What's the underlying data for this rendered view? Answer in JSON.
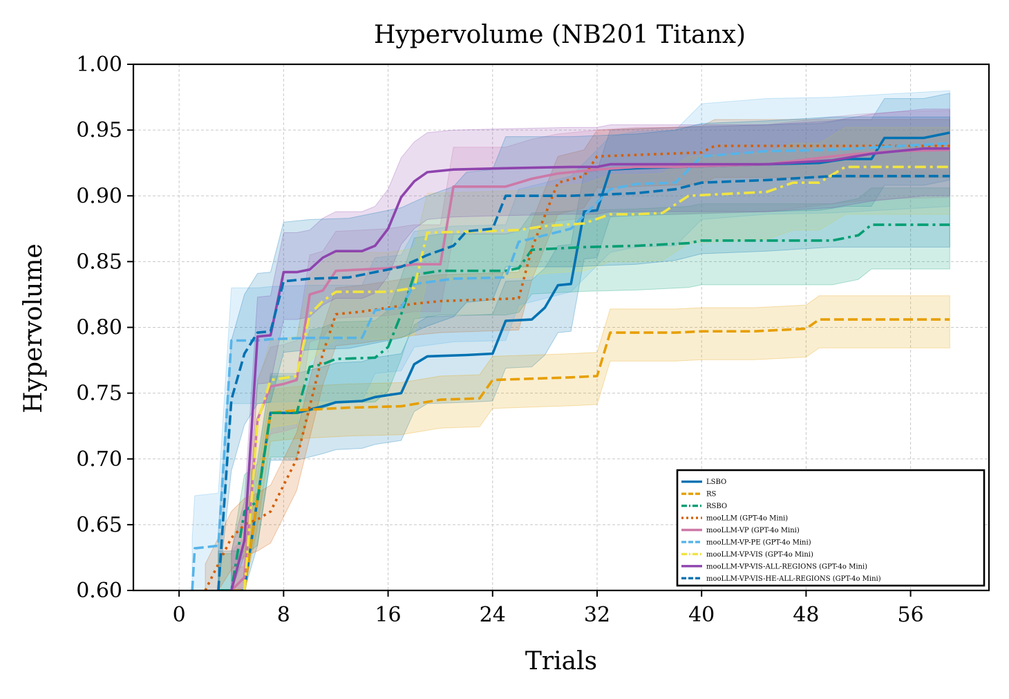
{
  "chart_data": {
    "type": "line",
    "title": "Hypervolume (NB201 Titanx)",
    "xlabel": "Trials",
    "ylabel": "Hypervolume",
    "xlim": [
      -3.5,
      62
    ],
    "ylim": [
      0.6,
      1.0
    ],
    "xticks": [
      0,
      8,
      16,
      24,
      32,
      40,
      48,
      56
    ],
    "yticks": [
      0.6,
      0.65,
      0.7,
      0.75,
      0.8,
      0.85,
      0.9,
      0.95,
      1.0
    ],
    "ytick_labels": [
      "0.60",
      "0.65",
      "0.70",
      "0.75",
      "0.80",
      "0.85",
      "0.90",
      "0.95",
      "1.00"
    ],
    "grid": true,
    "legend_position": "bottom-right",
    "series": [
      {
        "name": "LSBO",
        "color": "#0072B2",
        "dash": "solid",
        "band_width": 0.03,
        "points": [
          [
            3,
            0.6
          ],
          [
            4,
            0.6
          ],
          [
            5,
            0.6
          ],
          [
            6,
            0.67
          ],
          [
            7,
            0.735
          ],
          [
            9,
            0.735
          ],
          [
            11,
            0.74
          ],
          [
            12,
            0.743
          ],
          [
            14,
            0.744
          ],
          [
            15,
            0.747
          ],
          [
            17,
            0.75
          ],
          [
            18,
            0.772
          ],
          [
            19,
            0.778
          ],
          [
            22,
            0.779
          ],
          [
            24,
            0.78
          ],
          [
            25,
            0.805
          ],
          [
            27,
            0.806
          ],
          [
            28,
            0.815
          ],
          [
            29,
            0.832
          ],
          [
            30,
            0.833
          ],
          [
            31,
            0.888
          ],
          [
            32,
            0.889
          ],
          [
            33,
            0.92
          ],
          [
            35,
            0.921
          ],
          [
            45,
            0.924
          ],
          [
            49,
            0.925
          ],
          [
            51,
            0.928
          ],
          [
            53,
            0.928
          ],
          [
            54,
            0.944
          ],
          [
            57,
            0.944
          ],
          [
            59,
            0.948
          ]
        ]
      },
      {
        "name": "RS",
        "color": "#E69F00",
        "dash": "dashed",
        "band_width": 0.018,
        "points": [
          [
            4,
            0.6
          ],
          [
            5,
            0.6
          ],
          [
            6,
            0.67
          ],
          [
            7,
            0.735
          ],
          [
            9,
            0.737
          ],
          [
            13,
            0.739
          ],
          [
            17,
            0.74
          ],
          [
            20,
            0.745
          ],
          [
            23,
            0.746
          ],
          [
            24,
            0.76
          ],
          [
            27,
            0.761
          ],
          [
            30,
            0.762
          ],
          [
            32,
            0.763
          ],
          [
            33,
            0.796
          ],
          [
            38,
            0.796
          ],
          [
            40,
            0.797
          ],
          [
            44,
            0.797
          ],
          [
            48,
            0.799
          ],
          [
            49,
            0.806
          ],
          [
            59,
            0.806
          ]
        ]
      },
      {
        "name": "RSBO",
        "color": "#009E73",
        "dash": "dashdot",
        "band_width": 0.028,
        "points": [
          [
            3,
            0.6
          ],
          [
            4,
            0.6
          ],
          [
            5,
            0.66
          ],
          [
            6,
            0.668
          ],
          [
            7,
            0.735
          ],
          [
            9,
            0.735
          ],
          [
            10,
            0.77
          ],
          [
            11,
            0.772
          ],
          [
            12,
            0.776
          ],
          [
            15,
            0.777
          ],
          [
            16,
            0.785
          ],
          [
            17,
            0.81
          ],
          [
            18,
            0.84
          ],
          [
            20,
            0.843
          ],
          [
            25,
            0.843
          ],
          [
            26,
            0.845
          ],
          [
            27,
            0.859
          ],
          [
            29,
            0.86
          ],
          [
            31,
            0.861
          ],
          [
            35,
            0.862
          ],
          [
            39,
            0.864
          ],
          [
            40,
            0.866
          ],
          [
            50,
            0.866
          ],
          [
            52,
            0.87
          ],
          [
            53,
            0.878
          ],
          [
            59,
            0.878
          ]
        ]
      },
      {
        "name": "mooLLM  (GPT-4o Mini)",
        "color": "#D55E00",
        "dash": "dotted",
        "band_width": 0.02,
        "points": [
          [
            2,
            0.6
          ],
          [
            3,
            0.62
          ],
          [
            4,
            0.64
          ],
          [
            5,
            0.65
          ],
          [
            6,
            0.654
          ],
          [
            7,
            0.66
          ],
          [
            8,
            0.68
          ],
          [
            9,
            0.7
          ],
          [
            10,
            0.74
          ],
          [
            11,
            0.78
          ],
          [
            12,
            0.81
          ],
          [
            14,
            0.812
          ],
          [
            16,
            0.815
          ],
          [
            18,
            0.818
          ],
          [
            20,
            0.82
          ],
          [
            26,
            0.822
          ],
          [
            27,
            0.86
          ],
          [
            28,
            0.885
          ],
          [
            29,
            0.91
          ],
          [
            31,
            0.915
          ],
          [
            32,
            0.93
          ],
          [
            40,
            0.933
          ],
          [
            41,
            0.938
          ],
          [
            59,
            0.938
          ]
        ]
      },
      {
        "name": "mooLLM-VP  (GPT-4o Mini)",
        "color": "#CC79A7",
        "dash": "solid",
        "band_width": 0.03,
        "points": [
          [
            4,
            0.6
          ],
          [
            5,
            0.61
          ],
          [
            6,
            0.73
          ],
          [
            7,
            0.755
          ],
          [
            8,
            0.757
          ],
          [
            9,
            0.76
          ],
          [
            10,
            0.825
          ],
          [
            11,
            0.828
          ],
          [
            12,
            0.843
          ],
          [
            14,
            0.844
          ],
          [
            16,
            0.845
          ],
          [
            18,
            0.848
          ],
          [
            20,
            0.848
          ],
          [
            21,
            0.907
          ],
          [
            25,
            0.907
          ],
          [
            27,
            0.913
          ],
          [
            29,
            0.917
          ],
          [
            32,
            0.92
          ],
          [
            35,
            0.922
          ],
          [
            38,
            0.922
          ],
          [
            45,
            0.924
          ],
          [
            50,
            0.93
          ],
          [
            52,
            0.932
          ],
          [
            55,
            0.934
          ],
          [
            59,
            0.935
          ]
        ]
      },
      {
        "name": "mooLLM-VP-PE  (GPT-4o Mini)",
        "color": "#56B4E9",
        "dash": "dashed",
        "band_width": 0.04,
        "points": [
          [
            1,
            0.6
          ],
          [
            1.2,
            0.632
          ],
          [
            3,
            0.634
          ],
          [
            4,
            0.79
          ],
          [
            6,
            0.79
          ],
          [
            7,
            0.791
          ],
          [
            10,
            0.792
          ],
          [
            14,
            0.792
          ],
          [
            15,
            0.813
          ],
          [
            17,
            0.815
          ],
          [
            18,
            0.833
          ],
          [
            21,
            0.837
          ],
          [
            25,
            0.838
          ],
          [
            26,
            0.865
          ],
          [
            28,
            0.87
          ],
          [
            30,
            0.875
          ],
          [
            33,
            0.905
          ],
          [
            35,
            0.909
          ],
          [
            38,
            0.91
          ],
          [
            40,
            0.93
          ],
          [
            45,
            0.934
          ],
          [
            50,
            0.935
          ],
          [
            59,
            0.94
          ]
        ]
      },
      {
        "name": "mooLLM-VP-VIS  (GPT-4o Mini)",
        "color": "#F0E442",
        "dash": "dashdot",
        "band_width": 0.03,
        "points": [
          [
            5,
            0.6
          ],
          [
            6,
            0.728
          ],
          [
            7,
            0.76
          ],
          [
            9,
            0.763
          ],
          [
            10,
            0.81
          ],
          [
            11,
            0.82
          ],
          [
            12,
            0.827
          ],
          [
            16,
            0.827
          ],
          [
            18,
            0.83
          ],
          [
            19,
            0.872
          ],
          [
            23,
            0.873
          ],
          [
            26,
            0.874
          ],
          [
            28,
            0.877
          ],
          [
            31,
            0.879
          ],
          [
            33,
            0.886
          ],
          [
            35,
            0.886
          ],
          [
            37,
            0.887
          ],
          [
            39,
            0.9
          ],
          [
            45,
            0.903
          ],
          [
            47,
            0.91
          ],
          [
            49,
            0.91
          ],
          [
            51,
            0.922
          ],
          [
            59,
            0.922
          ]
        ]
      },
      {
        "name": "mooLLM-VP-VIS-ALL-REGIONS  (GPT-4o Mini)",
        "color": "#8E44AD",
        "dash": "solid",
        "band_width": 0.03,
        "points": [
          [
            4,
            0.6
          ],
          [
            5,
            0.638
          ],
          [
            6,
            0.793
          ],
          [
            7,
            0.794
          ],
          [
            8,
            0.842
          ],
          [
            9,
            0.842
          ],
          [
            10,
            0.844
          ],
          [
            11,
            0.853
          ],
          [
            12,
            0.858
          ],
          [
            14,
            0.858
          ],
          [
            15,
            0.862
          ],
          [
            16,
            0.875
          ],
          [
            17,
            0.899
          ],
          [
            18,
            0.911
          ],
          [
            19,
            0.918
          ],
          [
            21,
            0.92
          ],
          [
            25,
            0.921
          ],
          [
            30,
            0.922
          ],
          [
            32,
            0.922
          ],
          [
            33,
            0.924
          ],
          [
            40,
            0.924
          ],
          [
            45,
            0.924
          ],
          [
            50,
            0.927
          ],
          [
            53,
            0.932
          ],
          [
            55,
            0.934
          ],
          [
            57,
            0.936
          ],
          [
            59,
            0.936
          ]
        ]
      },
      {
        "name": "mooLLM-VP-VIS-HE-ALL-REGIONS  (GPT-4o Mini)",
        "color": "#0072B2",
        "dash": "dashed",
        "band_width": 0.045,
        "points": [
          [
            3,
            0.6
          ],
          [
            4,
            0.745
          ],
          [
            5,
            0.78
          ],
          [
            6,
            0.796
          ],
          [
            7,
            0.797
          ],
          [
            8,
            0.835
          ],
          [
            10,
            0.837
          ],
          [
            13,
            0.838
          ],
          [
            15,
            0.842
          ],
          [
            17,
            0.846
          ],
          [
            19,
            0.855
          ],
          [
            21,
            0.862
          ],
          [
            22,
            0.873
          ],
          [
            24,
            0.875
          ],
          [
            25,
            0.9
          ],
          [
            30,
            0.9
          ],
          [
            35,
            0.902
          ],
          [
            38,
            0.905
          ],
          [
            40,
            0.91
          ],
          [
            45,
            0.912
          ],
          [
            50,
            0.915
          ],
          [
            59,
            0.915
          ]
        ]
      }
    ]
  }
}
